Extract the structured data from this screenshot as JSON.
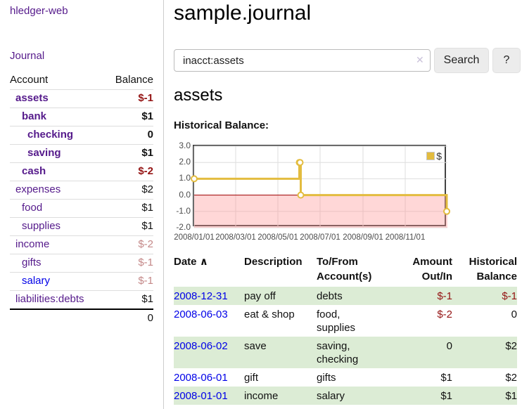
{
  "colors": {
    "link_purple": "#551a8b",
    "link_blue": "#0000e8",
    "negative": "#941414",
    "negative_muted": "#c48888",
    "row_highlight_green": "#dcecd5",
    "chart_line_gold": "#e3bc3f",
    "chart_negative_region": "#ffdede",
    "chart_zero_line": "#a00000"
  },
  "sidebar": {
    "brand": "hledger-web",
    "nav": {
      "journal": "Journal"
    },
    "accounts": {
      "headers": {
        "account": "Account",
        "balance": "Balance"
      },
      "rows": [
        {
          "name": "assets",
          "balance": "$-1"
        },
        {
          "name": "bank",
          "balance": "$1"
        },
        {
          "name": "checking",
          "balance": "0"
        },
        {
          "name": "saving",
          "balance": "$1"
        },
        {
          "name": "cash",
          "balance": "$-2"
        },
        {
          "name": "expenses",
          "balance": "$2"
        },
        {
          "name": "food",
          "balance": "$1"
        },
        {
          "name": "supplies",
          "balance": "$1"
        },
        {
          "name": "income",
          "balance": "$-2"
        },
        {
          "name": "gifts",
          "balance": "$-1"
        },
        {
          "name": "salary",
          "balance": "$-1"
        },
        {
          "name": "liabilities:debts",
          "balance": "$1"
        }
      ],
      "total": "0"
    }
  },
  "header": {
    "title": "sample.journal"
  },
  "search": {
    "value": "inacct:assets",
    "clear_icon": "✕",
    "search_button": "Search",
    "help_button": "?"
  },
  "account_page": {
    "heading": "assets",
    "chart_label": "Historical Balance:"
  },
  "chart_data": {
    "type": "line",
    "step": true,
    "title": "Historical Balance",
    "series": [
      {
        "name": "$",
        "color": "#e3bc3f",
        "points": [
          [
            "2008-01-01",
            1
          ],
          [
            "2008-06-01",
            2
          ],
          [
            "2008-06-02",
            2
          ],
          [
            "2008-06-03",
            0
          ],
          [
            "2008-12-31",
            -1
          ]
        ]
      }
    ],
    "x_range": [
      "2008-01-01",
      "2009-01-01"
    ],
    "ylim": [
      -2,
      3
    ],
    "y_ticks": [
      {
        "label": "3.0",
        "value": 3
      },
      {
        "label": "2.0",
        "value": 2
      },
      {
        "label": "1.0",
        "value": 1
      },
      {
        "label": "0.0",
        "value": 0
      },
      {
        "label": "-1.0",
        "value": -1
      },
      {
        "label": "-2.0",
        "value": -2
      }
    ],
    "x_ticks": [
      {
        "label": "2008/01/01",
        "date": "2008-01-01"
      },
      {
        "label": "2008/03/01",
        "date": "2008-03-01"
      },
      {
        "label": "2008/05/01",
        "date": "2008-05-01"
      },
      {
        "label": "2008/07/01",
        "date": "2008-07-01"
      },
      {
        "label": "2008/09/01",
        "date": "2008-09-01"
      },
      {
        "label": "2008/11/01",
        "date": "2008-11-01"
      }
    ],
    "legend": {
      "label": "$",
      "position": "top-right"
    },
    "negative_region": true,
    "grid": true
  },
  "transactions": {
    "headers": {
      "date": "Date",
      "sort_indicator": "∧",
      "description": "Description",
      "accounts": "To/From Account(s)",
      "amount": "Amount Out/In",
      "balance": "Historical Balance"
    },
    "rows": [
      {
        "date": "2008-12-31",
        "description": "pay off",
        "accounts": "debts",
        "amount": "$-1",
        "balance": "$-1"
      },
      {
        "date": "2008-06-03",
        "description": "eat & shop",
        "accounts": "food, supplies",
        "amount": "$-2",
        "balance": "0"
      },
      {
        "date": "2008-06-02",
        "description": "save",
        "accounts": "saving, checking",
        "amount": "0",
        "balance": "$2"
      },
      {
        "date": "2008-06-01",
        "description": "gift",
        "accounts": "gifts",
        "amount": "$1",
        "balance": "$2"
      },
      {
        "date": "2008-01-01",
        "description": "income",
        "accounts": "salary",
        "amount": "$1",
        "balance": "$1"
      }
    ]
  }
}
